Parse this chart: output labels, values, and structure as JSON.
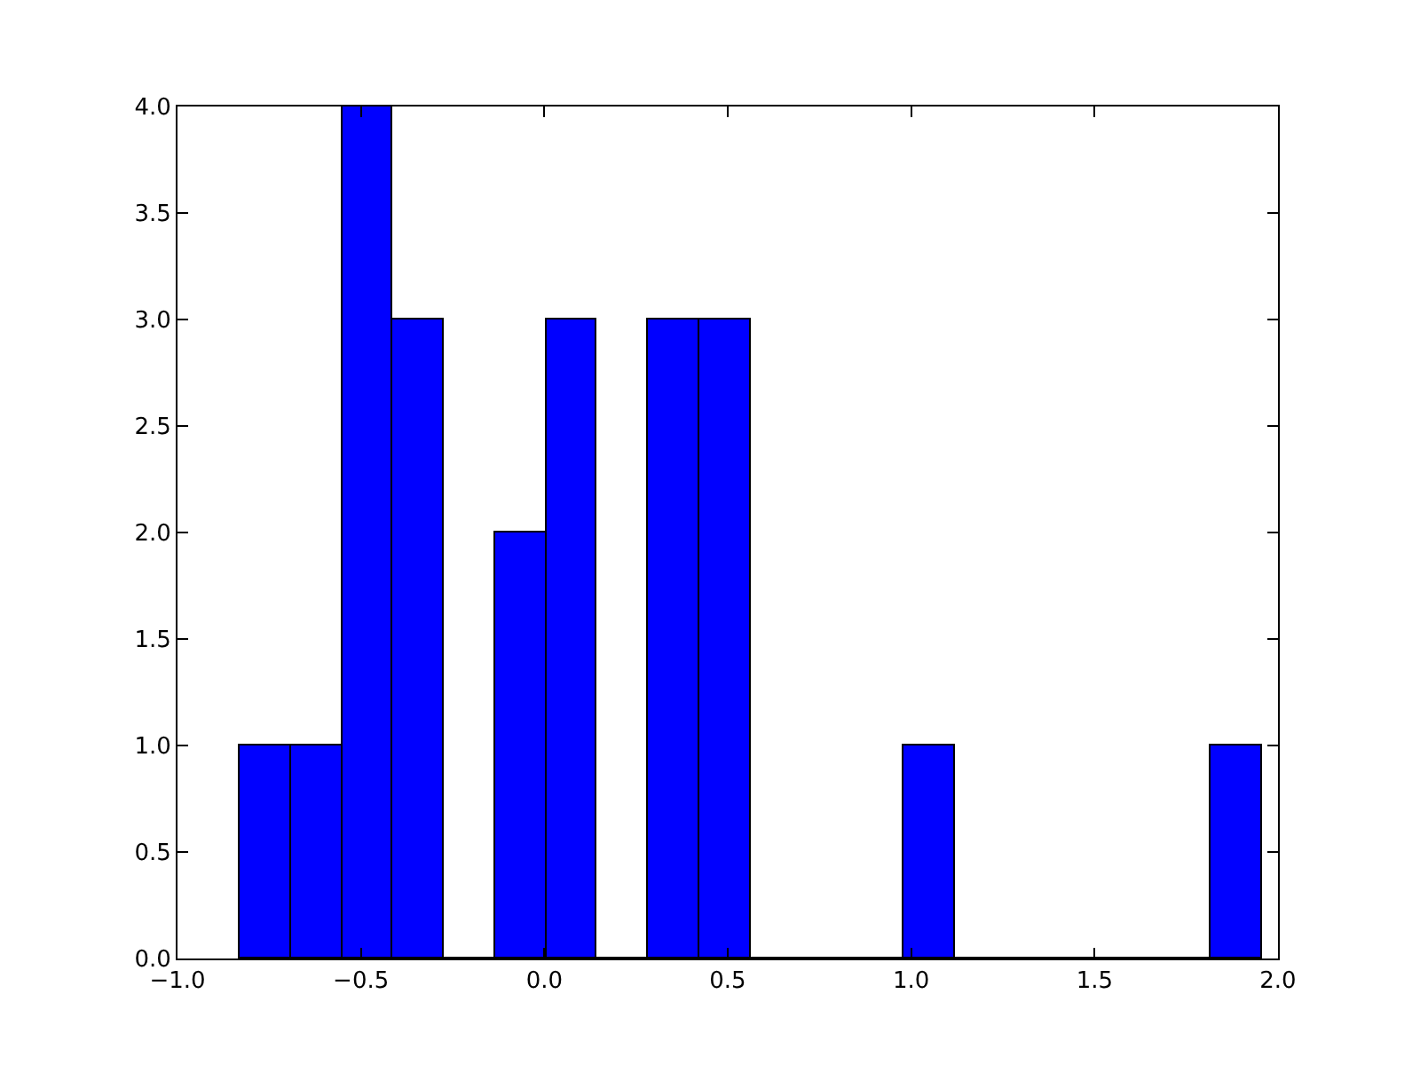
{
  "chart_data": {
    "type": "histogram",
    "bins": [
      -0.831,
      -0.692,
      -0.552,
      -0.413,
      -0.274,
      -0.134,
      0.005,
      0.144,
      0.283,
      0.423,
      0.562,
      0.701,
      0.841,
      0.98,
      1.119,
      1.259,
      1.398,
      1.537,
      1.676,
      1.816,
      1.955
    ],
    "values": [
      1,
      1,
      4,
      3,
      0,
      2,
      3,
      0,
      3,
      3,
      0,
      0,
      0,
      1,
      0,
      0,
      0,
      0,
      0,
      1
    ],
    "color": "#0000ff",
    "xlim": [
      -1.0,
      2.0
    ],
    "xticks": [
      {
        "value": -1.0,
        "label": "−1.0"
      },
      {
        "value": -0.5,
        "label": "−0.5"
      },
      {
        "value": 0.0,
        "label": "0.0"
      },
      {
        "value": 0.5,
        "label": "0.5"
      },
      {
        "value": 1.0,
        "label": "1.0"
      },
      {
        "value": 1.5,
        "label": "1.5"
      },
      {
        "value": 2.0,
        "label": "2.0"
      }
    ],
    "ylim": [
      0,
      4.0
    ],
    "yticks": [
      {
        "value": 0,
        "label": "0.0"
      },
      {
        "value": 0.5,
        "label": "0.5"
      },
      {
        "value": 1.0,
        "label": "1.0"
      },
      {
        "value": 1.5,
        "label": "1.5"
      },
      {
        "value": 2.0,
        "label": "2.0"
      },
      {
        "value": 2.5,
        "label": "2.5"
      },
      {
        "value": 3.0,
        "label": "3.0"
      },
      {
        "value": 3.5,
        "label": "3.5"
      },
      {
        "value": 4.0,
        "label": "4.0"
      }
    ],
    "legend": false
  }
}
